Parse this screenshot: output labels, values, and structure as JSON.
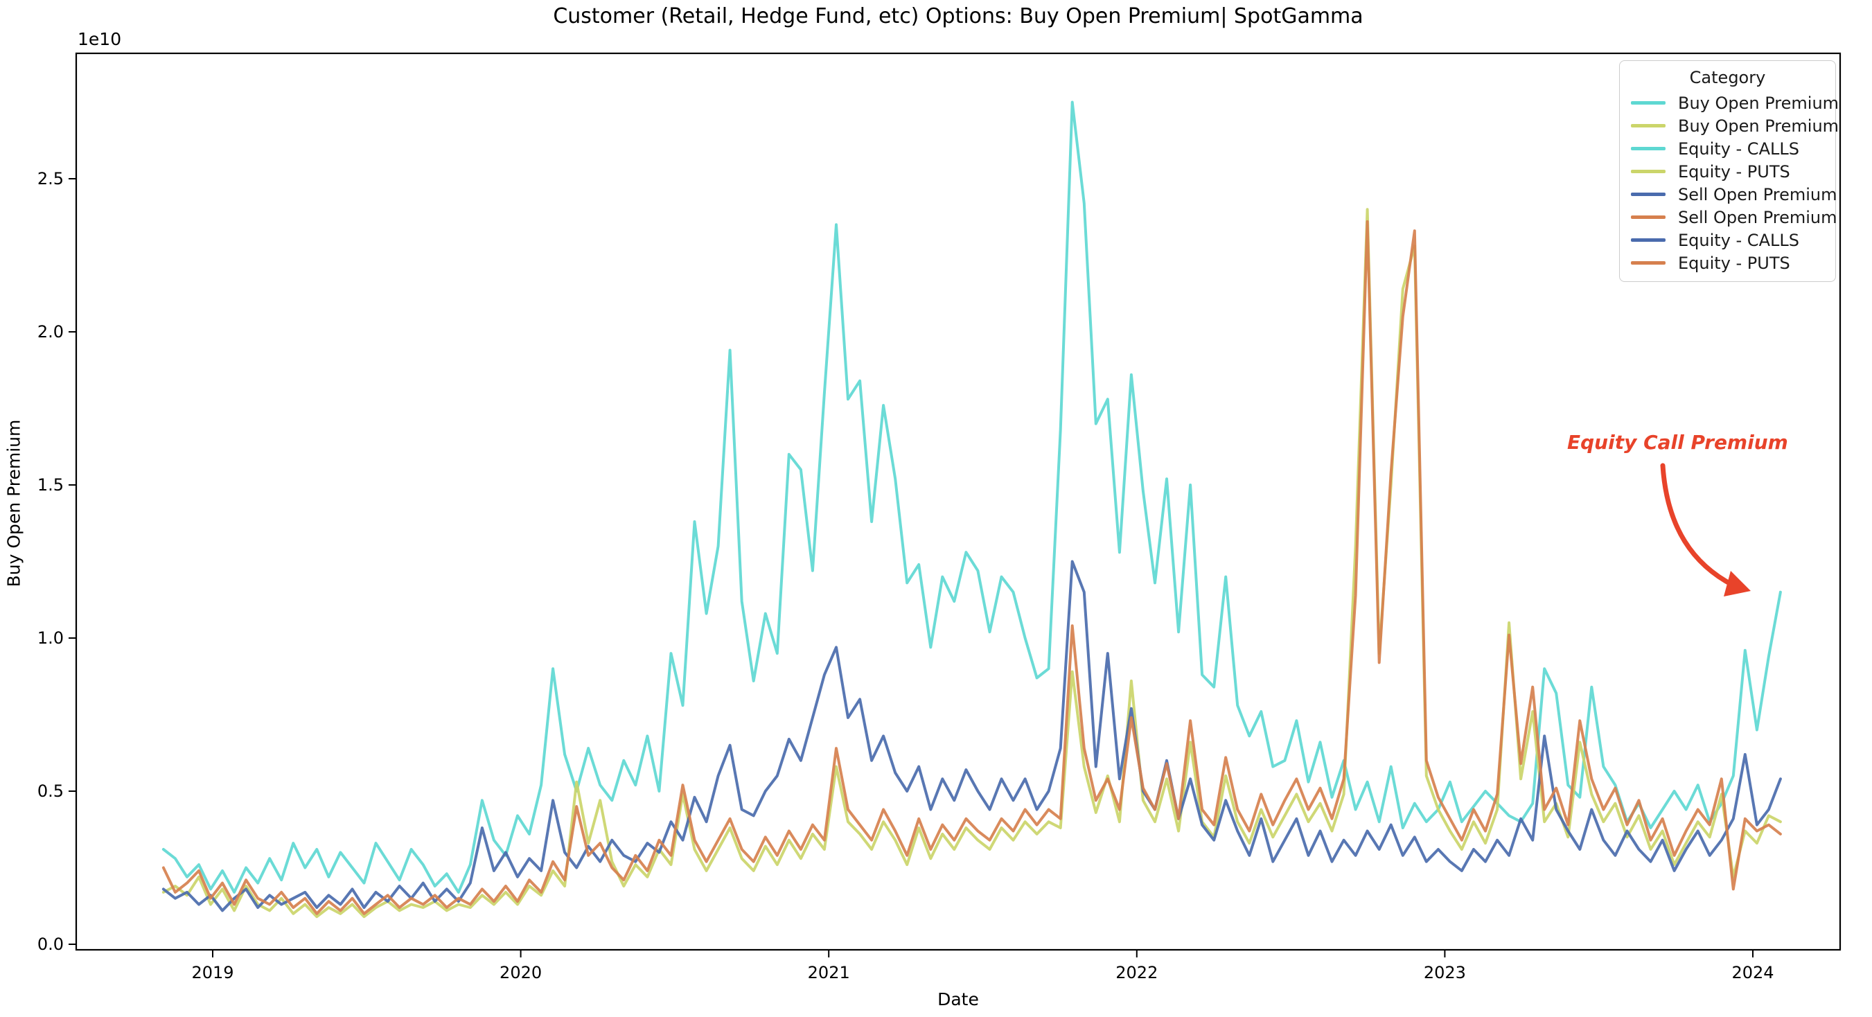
{
  "figure": {
    "title": "Customer (Retail, Hedge Fund, etc) Options: Buy Open Premium| SpotGamma",
    "offset_text": "1e10",
    "annotation": {
      "text": "Equity Call Premium",
      "color": "#E8432A"
    }
  },
  "legend": {
    "title": "Category",
    "items": [
      {
        "label": "Buy Open Premium",
        "color": "#5ED8D2"
      },
      {
        "label": "Buy Open Premium",
        "color": "#CBD56A"
      },
      {
        "label": "Equity - CALLS",
        "color": "#5ED8D2"
      },
      {
        "label": "Equity - PUTS",
        "color": "#CBD56A"
      },
      {
        "label": "Sell Open Premium",
        "color": "#4A6BAD"
      },
      {
        "label": "Sell Open Premium",
        "color": "#D6804E"
      },
      {
        "label": "Equity - CALLS",
        "color": "#4A6BAD"
      },
      {
        "label": "Equity - PUTS",
        "color": "#D6804E"
      }
    ]
  },
  "chart_data": {
    "type": "line",
    "title": "Customer (Retail, Hedge Fund, etc) Options: Buy Open Premium| SpotGamma",
    "xlabel": "Date",
    "ylabel": "Buy Open Premium",
    "y_scale_offset": "1e10",
    "x_ticks": [
      2019,
      2020,
      2021,
      2022,
      2023,
      2024
    ],
    "y_ticks": [
      "0.0",
      "0.5",
      "1.0",
      "1.5",
      "2.0",
      "2.5"
    ],
    "ylim": [
      -0.02,
      2.91
    ],
    "xlim": [
      2018.56,
      2024.28
    ],
    "grid": false,
    "legend_position": "upper right",
    "x_start": 2018.84,
    "x_step": 0.03832,
    "series": [
      {
        "name": "Buy Open Premium | Equity - CALLS",
        "color": "#5ED8D2",
        "values": [
          0.31,
          0.28,
          0.22,
          0.26,
          0.18,
          0.24,
          0.17,
          0.25,
          0.2,
          0.28,
          0.21,
          0.33,
          0.25,
          0.31,
          0.22,
          0.3,
          0.25,
          0.2,
          0.33,
          0.27,
          0.21,
          0.31,
          0.26,
          0.19,
          0.23,
          0.17,
          0.26,
          0.47,
          0.34,
          0.29,
          0.42,
          0.36,
          0.52,
          0.9,
          0.62,
          0.5,
          0.64,
          0.52,
          0.47,
          0.6,
          0.52,
          0.68,
          0.5,
          0.95,
          0.78,
          1.38,
          1.08,
          1.3,
          1.94,
          1.12,
          0.86,
          1.08,
          0.95,
          1.6,
          1.55,
          1.22,
          1.8,
          2.35,
          1.78,
          1.84,
          1.38,
          1.76,
          1.52,
          1.18,
          1.24,
          0.97,
          1.2,
          1.12,
          1.28,
          1.22,
          1.02,
          1.2,
          1.15,
          1.0,
          0.87,
          0.9,
          1.68,
          2.75,
          2.42,
          1.7,
          1.78,
          1.28,
          1.86,
          1.48,
          1.18,
          1.52,
          1.02,
          1.5,
          0.88,
          0.84,
          1.2,
          0.78,
          0.68,
          0.76,
          0.58,
          0.6,
          0.73,
          0.53,
          0.66,
          0.48,
          0.6,
          0.44,
          0.53,
          0.4,
          0.58,
          0.38,
          0.46,
          0.4,
          0.44,
          0.53,
          0.4,
          0.45,
          0.5,
          0.46,
          0.42,
          0.4,
          0.46,
          0.9,
          0.82,
          0.52,
          0.48,
          0.84,
          0.58,
          0.52,
          0.4,
          0.46,
          0.38,
          0.44,
          0.5,
          0.44,
          0.52,
          0.4,
          0.46,
          0.55,
          0.96,
          0.7,
          0.94,
          1.15
        ]
      },
      {
        "name": "Buy Open Premium | Equity - PUTS",
        "color": "#CBD56A",
        "values": [
          0.17,
          0.19,
          0.16,
          0.22,
          0.13,
          0.18,
          0.11,
          0.19,
          0.13,
          0.11,
          0.15,
          0.1,
          0.13,
          0.09,
          0.12,
          0.1,
          0.13,
          0.09,
          0.12,
          0.14,
          0.11,
          0.13,
          0.12,
          0.14,
          0.11,
          0.13,
          0.12,
          0.16,
          0.13,
          0.17,
          0.13,
          0.19,
          0.16,
          0.24,
          0.19,
          0.53,
          0.33,
          0.47,
          0.27,
          0.19,
          0.26,
          0.22,
          0.31,
          0.26,
          0.49,
          0.31,
          0.24,
          0.31,
          0.38,
          0.28,
          0.24,
          0.32,
          0.26,
          0.34,
          0.28,
          0.36,
          0.31,
          0.58,
          0.4,
          0.36,
          0.31,
          0.4,
          0.34,
          0.26,
          0.38,
          0.28,
          0.36,
          0.31,
          0.38,
          0.34,
          0.31,
          0.38,
          0.34,
          0.4,
          0.36,
          0.4,
          0.38,
          0.89,
          0.58,
          0.43,
          0.55,
          0.4,
          0.86,
          0.47,
          0.4,
          0.54,
          0.37,
          0.66,
          0.4,
          0.35,
          0.55,
          0.4,
          0.33,
          0.44,
          0.35,
          0.42,
          0.49,
          0.4,
          0.46,
          0.37,
          0.49,
          1.3,
          2.4,
          0.95,
          1.5,
          2.14,
          2.28,
          0.55,
          0.44,
          0.37,
          0.31,
          0.4,
          0.33,
          0.44,
          1.05,
          0.54,
          0.76,
          0.4,
          0.46,
          0.35,
          0.66,
          0.49,
          0.4,
          0.46,
          0.35,
          0.42,
          0.31,
          0.37,
          0.26,
          0.33,
          0.4,
          0.35,
          0.49,
          0.22,
          0.37,
          0.33,
          0.42,
          0.4
        ]
      },
      {
        "name": "Sell Open Premium | Equity - CALLS",
        "color": "#4A6BAD",
        "values": [
          0.18,
          0.15,
          0.17,
          0.13,
          0.16,
          0.11,
          0.15,
          0.18,
          0.12,
          0.16,
          0.13,
          0.15,
          0.17,
          0.12,
          0.16,
          0.13,
          0.18,
          0.12,
          0.17,
          0.14,
          0.19,
          0.15,
          0.2,
          0.14,
          0.18,
          0.14,
          0.2,
          0.38,
          0.24,
          0.3,
          0.22,
          0.28,
          0.24,
          0.47,
          0.3,
          0.25,
          0.32,
          0.27,
          0.34,
          0.29,
          0.27,
          0.33,
          0.3,
          0.4,
          0.34,
          0.48,
          0.4,
          0.55,
          0.65,
          0.44,
          0.42,
          0.5,
          0.55,
          0.67,
          0.6,
          0.74,
          0.88,
          0.97,
          0.74,
          0.8,
          0.6,
          0.68,
          0.56,
          0.5,
          0.58,
          0.44,
          0.54,
          0.47,
          0.57,
          0.5,
          0.44,
          0.54,
          0.47,
          0.54,
          0.44,
          0.5,
          0.64,
          1.25,
          1.15,
          0.58,
          0.95,
          0.54,
          0.77,
          0.5,
          0.44,
          0.6,
          0.41,
          0.54,
          0.39,
          0.34,
          0.47,
          0.37,
          0.29,
          0.41,
          0.27,
          0.34,
          0.41,
          0.29,
          0.37,
          0.27,
          0.34,
          0.29,
          0.37,
          0.31,
          0.39,
          0.29,
          0.35,
          0.27,
          0.31,
          0.27,
          0.24,
          0.31,
          0.27,
          0.34,
          0.29,
          0.41,
          0.34,
          0.68,
          0.44,
          0.37,
          0.31,
          0.44,
          0.34,
          0.29,
          0.37,
          0.31,
          0.27,
          0.34,
          0.24,
          0.31,
          0.37,
          0.29,
          0.34,
          0.41,
          0.62,
          0.39,
          0.44,
          0.54
        ]
      },
      {
        "name": "Sell Open Premium | Equity - PUTS",
        "color": "#D6804E",
        "values": [
          0.25,
          0.17,
          0.2,
          0.24,
          0.15,
          0.2,
          0.13,
          0.21,
          0.15,
          0.13,
          0.17,
          0.12,
          0.15,
          0.1,
          0.14,
          0.11,
          0.15,
          0.1,
          0.13,
          0.16,
          0.12,
          0.15,
          0.13,
          0.16,
          0.12,
          0.15,
          0.13,
          0.18,
          0.14,
          0.19,
          0.14,
          0.21,
          0.17,
          0.27,
          0.21,
          0.45,
          0.29,
          0.33,
          0.25,
          0.21,
          0.29,
          0.24,
          0.34,
          0.29,
          0.52,
          0.34,
          0.27,
          0.34,
          0.41,
          0.31,
          0.27,
          0.35,
          0.29,
          0.37,
          0.31,
          0.39,
          0.34,
          0.64,
          0.44,
          0.39,
          0.34,
          0.44,
          0.37,
          0.29,
          0.41,
          0.31,
          0.39,
          0.34,
          0.41,
          0.37,
          0.34,
          0.41,
          0.37,
          0.44,
          0.39,
          0.44,
          0.41,
          1.04,
          0.64,
          0.47,
          0.54,
          0.44,
          0.74,
          0.51,
          0.44,
          0.59,
          0.41,
          0.73,
          0.44,
          0.39,
          0.61,
          0.44,
          0.37,
          0.49,
          0.39,
          0.47,
          0.54,
          0.44,
          0.51,
          0.41,
          0.54,
          1.14,
          2.36,
          0.92,
          1.54,
          2.05,
          2.33,
          0.6,
          0.48,
          0.41,
          0.34,
          0.44,
          0.37,
          0.49,
          1.01,
          0.59,
          0.84,
          0.44,
          0.51,
          0.39,
          0.73,
          0.54,
          0.44,
          0.51,
          0.39,
          0.47,
          0.34,
          0.41,
          0.29,
          0.37,
          0.44,
          0.39,
          0.54,
          0.18,
          0.41,
          0.37,
          0.39,
          0.36
        ]
      }
    ],
    "annotation": {
      "text": "Equity Call Premium",
      "color": "#E8432A"
    }
  }
}
